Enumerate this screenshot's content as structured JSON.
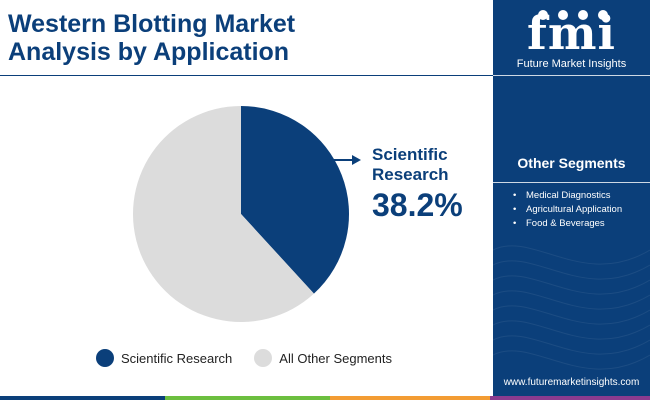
{
  "header": {
    "title_line1": "Western Blotting Market",
    "title_line2": "Analysis by Application"
  },
  "chart_data": {
    "type": "pie",
    "categories": [
      "Scientific Research",
      "All Other Segments"
    ],
    "values": [
      38.2,
      61.8
    ],
    "colors": [
      "#0b3f7a",
      "#dcdcdc"
    ],
    "callout": {
      "category_line1": "Scientific",
      "category_line2": "Research",
      "value_label": "38.2%"
    },
    "legend": [
      "Scientific Research",
      "All Other Segments"
    ],
    "legend_position": "bottom"
  },
  "sidebar": {
    "logo_letters": "fmi",
    "logo_name": "Future Market Insights",
    "segments_title": "Other Segments",
    "segments": [
      "Medical Diagnostics",
      "Agricultural Application",
      "Food & Beverages"
    ],
    "website": "www.futuremarketinsights.com",
    "background_color": "#0b3f7a"
  },
  "bottom_bar_colors": [
    "#0b3f7a",
    "#6cbf3f",
    "#f39c33",
    "#8a3b8f"
  ]
}
